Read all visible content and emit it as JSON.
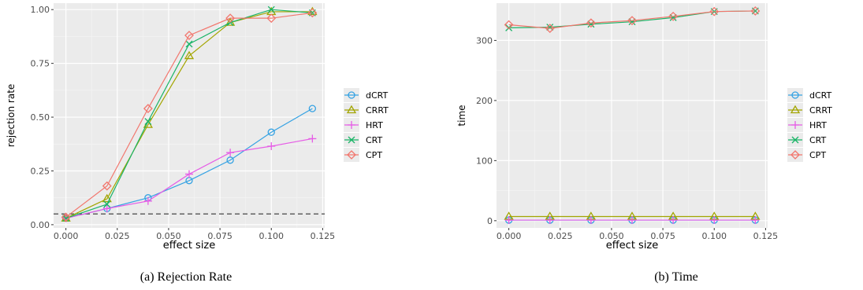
{
  "chart_data": [
    {
      "type": "line",
      "caption": "(a) Rejection Rate",
      "xlabel": "effect size",
      "ylabel": "rejection rate",
      "x": [
        0,
        0.02,
        0.04,
        0.06,
        0.08,
        0.1,
        0.12
      ],
      "xlim": [
        -0.006,
        0.126
      ],
      "ylim": [
        -0.015,
        1.03
      ],
      "xticks": [
        0,
        0.025,
        0.05,
        0.075,
        0.1,
        0.125
      ],
      "xtick_labels": [
        "0.000",
        "0.025",
        "0.050",
        "0.075",
        "0.100",
        "0.125"
      ],
      "yticks": [
        0,
        0.25,
        0.5,
        0.75,
        1.0
      ],
      "ytick_labels": [
        "0.00",
        "0.25",
        "0.50",
        "0.75",
        "1.00"
      ],
      "hline": 0.05,
      "grid": true,
      "legend_position": "right",
      "series": [
        {
          "name": "dCRT",
          "color": "#35a2e3",
          "marker": "circle",
          "values": [
            0.03,
            0.075,
            0.125,
            0.205,
            0.3,
            0.43,
            0.54
          ]
        },
        {
          "name": "CRRT",
          "color": "#a3a500",
          "marker": "triangle",
          "values": [
            0.03,
            0.12,
            0.465,
            0.785,
            0.94,
            0.99,
            0.99
          ]
        },
        {
          "name": "HRT",
          "color": "#e65ce6",
          "marker": "plus",
          "values": [
            0.03,
            0.075,
            0.11,
            0.235,
            0.335,
            0.365,
            0.4
          ]
        },
        {
          "name": "CRT",
          "color": "#1ab467",
          "marker": "cross",
          "values": [
            0.03,
            0.095,
            0.48,
            0.84,
            0.94,
            1.0,
            0.985
          ]
        },
        {
          "name": "CPT",
          "color": "#f2766d",
          "marker": "diamond",
          "values": [
            0.035,
            0.18,
            0.54,
            0.88,
            0.96,
            0.96,
            0.985
          ]
        }
      ]
    },
    {
      "type": "line",
      "caption": "(b) Time",
      "xlabel": "effect size",
      "ylabel": "time",
      "x": [
        0,
        0.02,
        0.04,
        0.06,
        0.08,
        0.1,
        0.12
      ],
      "xlim": [
        -0.006,
        0.126
      ],
      "ylim": [
        -12,
        362
      ],
      "xticks": [
        0,
        0.025,
        0.05,
        0.075,
        0.1,
        0.125
      ],
      "xtick_labels": [
        "0.000",
        "0.025",
        "0.050",
        "0.075",
        "0.100",
        "0.125"
      ],
      "yticks": [
        0,
        100,
        200,
        300
      ],
      "ytick_labels": [
        "0",
        "100",
        "200",
        "300"
      ],
      "grid": true,
      "legend_position": "right",
      "series": [
        {
          "name": "dCRT",
          "color": "#35a2e3",
          "marker": "circle",
          "values": [
            1,
            1,
            1,
            1,
            1,
            1,
            1
          ]
        },
        {
          "name": "CRRT",
          "color": "#a3a500",
          "marker": "triangle",
          "values": [
            7,
            7,
            7,
            7,
            7,
            7,
            7
          ]
        },
        {
          "name": "HRT",
          "color": "#e65ce6",
          "marker": "plus",
          "values": [
            1,
            1,
            1,
            1,
            1,
            1,
            1
          ]
        },
        {
          "name": "CRT",
          "color": "#1ab467",
          "marker": "cross",
          "values": [
            321,
            322,
            327,
            331,
            338,
            348,
            349
          ]
        },
        {
          "name": "CPT",
          "color": "#f2766d",
          "marker": "diamond",
          "values": [
            326,
            320,
            329,
            333,
            340,
            348,
            349
          ]
        }
      ]
    }
  ]
}
